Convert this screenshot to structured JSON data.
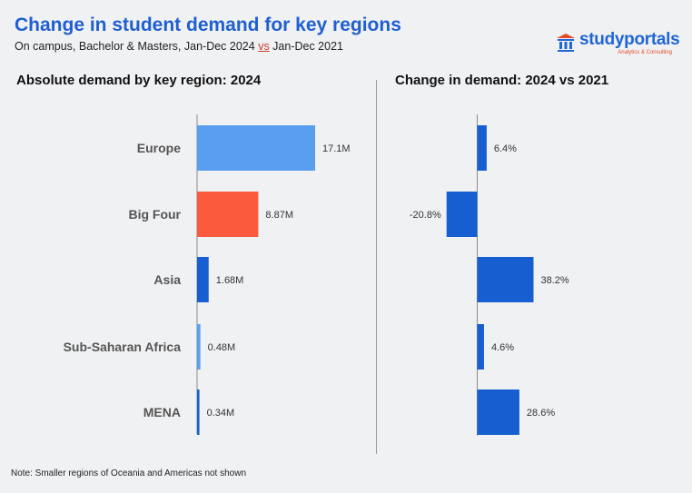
{
  "header": {
    "title": "Change in student demand for key regions",
    "subtitle_pre": "On campus, Bachelor & Masters, Jan-Dec 2024 ",
    "subtitle_vs": "vs",
    "subtitle_post": " Jan-Dec 2021"
  },
  "logo": {
    "text": "studyportals",
    "tagline": "Analytics & Consulting",
    "icon": "institution-icon"
  },
  "note": "Note: Smaller regions of Oceania and Americas not shown",
  "colors": {
    "title": "#1f5fd0",
    "europe": "#5a9ef0",
    "big_four": "#fb5a3c",
    "dark_blue": "#175fd0",
    "light_blue": "#5a9ef0"
  },
  "chart_data": [
    {
      "type": "bar",
      "orientation": "horizontal",
      "title": "Absolute demand by key region: 2024",
      "categories": [
        "Europe",
        "Big Four",
        "Asia",
        "Sub-Saharan Africa",
        "MENA"
      ],
      "values": [
        17.1,
        8.87,
        1.68,
        0.48,
        0.34
      ],
      "value_labels": [
        "17.1M",
        "8.87M",
        "1.68M",
        "0.48M",
        "0.34M"
      ],
      "bar_colors": [
        "#5a9ef0",
        "#fb5a3c",
        "#175fd0",
        "#5a9ef0",
        "#175fd0"
      ],
      "unit": "M"
    },
    {
      "type": "bar",
      "orientation": "horizontal",
      "title": "Change in demand: 2024 vs 2021",
      "categories": [
        "Europe",
        "Big Four",
        "Asia",
        "Sub-Saharan Africa",
        "MENA"
      ],
      "values": [
        6.4,
        -20.8,
        38.2,
        4.6,
        28.6
      ],
      "value_labels": [
        "6.4%",
        "-20.8%",
        "38.2%",
        "4.6%",
        "28.6%"
      ],
      "bar_colors": [
        "#175fd0",
        "#175fd0",
        "#175fd0",
        "#175fd0",
        "#175fd0"
      ],
      "unit": "%"
    }
  ]
}
